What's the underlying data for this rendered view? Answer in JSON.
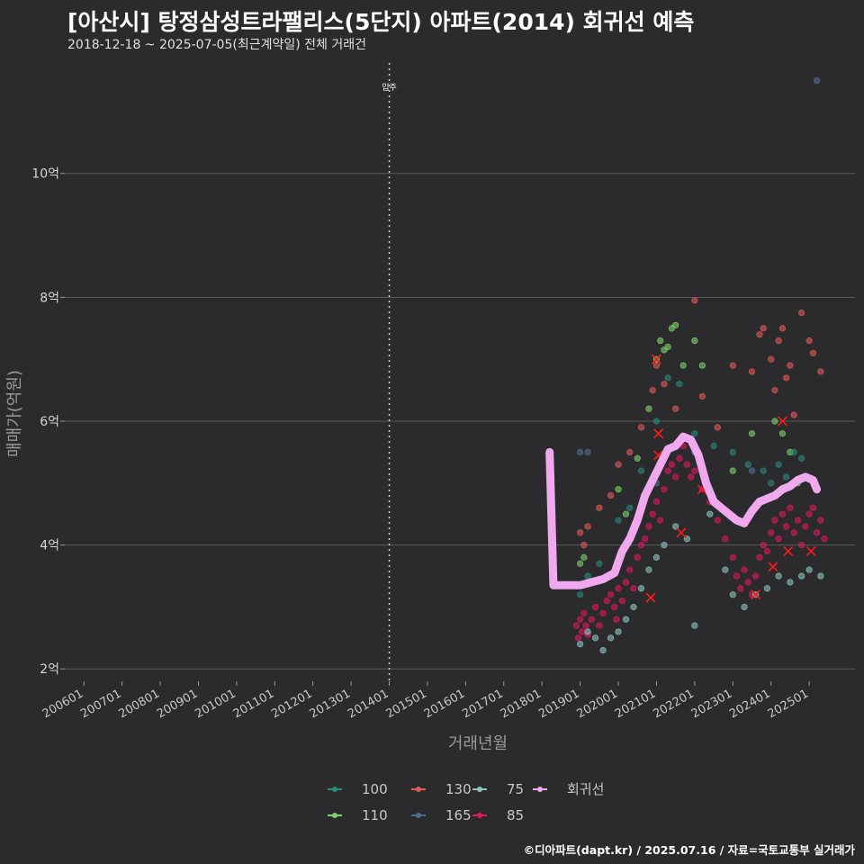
{
  "title": "[아산시] 탕정삼성트라팰리스(5단지) 아파트(2014) 회귀선 예측",
  "subtitle": "2018-12-18 ~ 2025-07-05(최근계약일) 전체 거래건",
  "footer": "©디아파트(dapt.kr) / 2025.07.16 / 자료=국토교통부 실거래가",
  "colors": {
    "background": "#2b2a2c",
    "grid": "#5a5a5a",
    "regression": "#f0a8ee",
    "marker_red": "#ff1a1a",
    "s100": "#2a8a7a",
    "s110": "#7fd36b",
    "s130": "#e35a5a",
    "s165": "#4f6e96",
    "s75": "#8ec7c0",
    "s85": "#e0185f"
  },
  "chart_data": {
    "type": "scatter",
    "xlabel": "거래년월",
    "ylabel": "매매가(억원)",
    "x_ticks": [
      "200601",
      "200701",
      "200801",
      "200901",
      "201001",
      "201101",
      "201201",
      "201301",
      "201401",
      "201501",
      "201601",
      "201701",
      "201801",
      "201901",
      "202001",
      "202101",
      "202201",
      "202301",
      "202401",
      "202501"
    ],
    "x_range": [
      2005.5,
      2026.2
    ],
    "y_ticks": [
      {
        "value": 2,
        "label": "2억"
      },
      {
        "value": 4,
        "label": "4억"
      },
      {
        "value": 6,
        "label": "6억"
      },
      {
        "value": 8,
        "label": "8억"
      },
      {
        "value": 10,
        "label": "10억"
      }
    ],
    "y_range": [
      1.8,
      11.9
    ],
    "vline": {
      "x": 2014.0,
      "label": "입주"
    },
    "legend": [
      {
        "name": "100",
        "color": "#2a8a7a"
      },
      {
        "name": "110",
        "color": "#7fd36b"
      },
      {
        "name": "130",
        "color": "#e35a5a"
      },
      {
        "name": "165",
        "color": "#4f6e96"
      },
      {
        "name": "75",
        "color": "#8ec7c0"
      },
      {
        "name": "85",
        "color": "#e0185f"
      },
      {
        "name": "회귀선",
        "color": "#f0a8ee"
      }
    ],
    "series": [
      {
        "name": "85",
        "color": "#e0185f",
        "points": [
          [
            2018.9,
            2.7
          ],
          [
            2018.95,
            2.5
          ],
          [
            2019.0,
            2.8
          ],
          [
            2019.05,
            2.6
          ],
          [
            2019.1,
            2.9
          ],
          [
            2019.15,
            2.7
          ],
          [
            2019.2,
            2.55
          ],
          [
            2019.3,
            2.8
          ],
          [
            2019.4,
            3.0
          ],
          [
            2019.5,
            2.7
          ],
          [
            2019.6,
            2.9
          ],
          [
            2019.7,
            3.1
          ],
          [
            2019.8,
            3.2
          ],
          [
            2019.9,
            3.0
          ],
          [
            2019.95,
            2.8
          ],
          [
            2020.0,
            3.3
          ],
          [
            2020.1,
            3.1
          ],
          [
            2020.2,
            3.4
          ],
          [
            2020.3,
            3.6
          ],
          [
            2020.4,
            3.3
          ],
          [
            2020.5,
            3.8
          ],
          [
            2020.6,
            4.0
          ],
          [
            2020.7,
            4.1
          ],
          [
            2020.8,
            4.3
          ],
          [
            2020.9,
            4.5
          ],
          [
            2021.0,
            4.7
          ],
          [
            2021.1,
            4.4
          ],
          [
            2021.2,
            4.9
          ],
          [
            2021.3,
            5.2
          ],
          [
            2021.4,
            5.3
          ],
          [
            2021.5,
            5.1
          ],
          [
            2021.6,
            5.4
          ],
          [
            2021.7,
            5.6
          ],
          [
            2021.8,
            5.3
          ],
          [
            2021.9,
            5.1
          ],
          [
            2022.0,
            5.2
          ],
          [
            2022.2,
            4.9
          ],
          [
            2022.4,
            4.7
          ],
          [
            2022.6,
            4.4
          ],
          [
            2022.8,
            4.1
          ],
          [
            2023.0,
            3.8
          ],
          [
            2023.1,
            3.5
          ],
          [
            2023.2,
            3.3
          ],
          [
            2023.3,
            3.6
          ],
          [
            2023.4,
            3.4
          ],
          [
            2023.5,
            3.2
          ],
          [
            2023.6,
            3.5
          ],
          [
            2023.7,
            3.8
          ],
          [
            2023.8,
            4.0
          ],
          [
            2023.9,
            3.9
          ],
          [
            2024.0,
            4.2
          ],
          [
            2024.1,
            4.4
          ],
          [
            2024.2,
            4.1
          ],
          [
            2024.3,
            4.5
          ],
          [
            2024.4,
            4.3
          ],
          [
            2024.5,
            4.6
          ],
          [
            2024.6,
            4.2
          ],
          [
            2024.7,
            4.4
          ],
          [
            2024.8,
            4.0
          ],
          [
            2024.9,
            4.3
          ],
          [
            2025.0,
            4.5
          ],
          [
            2025.1,
            4.6
          ],
          [
            2025.2,
            4.2
          ],
          [
            2025.3,
            4.4
          ],
          [
            2025.4,
            4.1
          ]
        ]
      },
      {
        "name": "130",
        "color": "#e35a5a",
        "points": [
          [
            2019.0,
            4.2
          ],
          [
            2019.1,
            4.0
          ],
          [
            2019.2,
            4.3
          ],
          [
            2019.5,
            4.6
          ],
          [
            2019.8,
            4.8
          ],
          [
            2020.0,
            5.3
          ],
          [
            2020.3,
            5.5
          ],
          [
            2020.6,
            5.9
          ],
          [
            2020.9,
            6.5
          ],
          [
            2021.0,
            6.9
          ],
          [
            2021.2,
            6.6
          ],
          [
            2021.5,
            6.2
          ],
          [
            2022.0,
            7.95
          ],
          [
            2022.2,
            6.4
          ],
          [
            2022.6,
            5.9
          ],
          [
            2023.0,
            6.9
          ],
          [
            2023.5,
            6.8
          ],
          [
            2023.7,
            7.4
          ],
          [
            2024.0,
            7.0
          ],
          [
            2024.2,
            7.3
          ],
          [
            2024.3,
            7.5
          ],
          [
            2024.4,
            6.7
          ],
          [
            2024.6,
            6.1
          ],
          [
            2024.8,
            7.75
          ],
          [
            2025.0,
            7.3
          ],
          [
            2025.1,
            7.1
          ],
          [
            2025.3,
            6.8
          ],
          [
            2024.1,
            6.5
          ],
          [
            2023.8,
            7.5
          ],
          [
            2024.5,
            6.9
          ]
        ]
      },
      {
        "name": "110",
        "color": "#7fd36b",
        "points": [
          [
            2019.0,
            3.7
          ],
          [
            2019.1,
            3.8
          ],
          [
            2020.0,
            4.9
          ],
          [
            2020.2,
            4.5
          ],
          [
            2020.5,
            5.4
          ],
          [
            2020.8,
            6.2
          ],
          [
            2021.0,
            7.0
          ],
          [
            2021.1,
            7.3
          ],
          [
            2021.2,
            7.15
          ],
          [
            2021.3,
            7.2
          ],
          [
            2021.4,
            7.5
          ],
          [
            2021.5,
            7.55
          ],
          [
            2021.7,
            6.9
          ],
          [
            2022.0,
            7.3
          ],
          [
            2022.2,
            6.9
          ],
          [
            2023.0,
            5.2
          ],
          [
            2023.5,
            5.8
          ],
          [
            2024.1,
            6.0
          ],
          [
            2024.3,
            5.8
          ],
          [
            2024.5,
            5.5
          ],
          [
            2024.7,
            5.0
          ]
        ]
      },
      {
        "name": "100",
        "color": "#2a8a7a",
        "points": [
          [
            2019.0,
            3.2
          ],
          [
            2019.2,
            3.5
          ],
          [
            2019.5,
            3.7
          ],
          [
            2020.0,
            4.4
          ],
          [
            2020.3,
            4.6
          ],
          [
            2020.6,
            5.2
          ],
          [
            2021.0,
            6.0
          ],
          [
            2021.3,
            6.7
          ],
          [
            2021.6,
            6.6
          ],
          [
            2022.0,
            5.8
          ],
          [
            2022.5,
            5.6
          ],
          [
            2023.0,
            5.5
          ],
          [
            2023.4,
            5.3
          ],
          [
            2023.8,
            5.2
          ],
          [
            2024.0,
            5.0
          ],
          [
            2024.2,
            5.3
          ],
          [
            2024.4,
            5.1
          ],
          [
            2024.6,
            5.5
          ],
          [
            2024.8,
            5.4
          ]
        ]
      },
      {
        "name": "165",
        "color": "#4f6e96",
        "points": [
          [
            2019.0,
            5.5
          ],
          [
            2019.2,
            5.5
          ],
          [
            2021.0,
            5.0
          ],
          [
            2022.0,
            5.5
          ],
          [
            2023.5,
            5.2
          ],
          [
            2025.2,
            11.5
          ]
        ]
      },
      {
        "name": "75",
        "color": "#8ec7c0",
        "points": [
          [
            2019.0,
            2.4
          ],
          [
            2019.2,
            2.6
          ],
          [
            2019.4,
            2.5
          ],
          [
            2019.6,
            2.3
          ],
          [
            2019.8,
            2.5
          ],
          [
            2020.0,
            2.6
          ],
          [
            2020.2,
            2.8
          ],
          [
            2020.4,
            3.0
          ],
          [
            2020.6,
            3.3
          ],
          [
            2020.8,
            3.6
          ],
          [
            2021.0,
            3.8
          ],
          [
            2021.2,
            4.0
          ],
          [
            2021.5,
            4.3
          ],
          [
            2021.8,
            4.1
          ],
          [
            2022.0,
            2.7
          ],
          [
            2022.4,
            4.5
          ],
          [
            2022.8,
            3.6
          ],
          [
            2023.0,
            3.2
          ],
          [
            2023.3,
            3.0
          ],
          [
            2023.6,
            3.2
          ],
          [
            2023.9,
            3.3
          ],
          [
            2024.2,
            3.5
          ],
          [
            2024.5,
            3.4
          ],
          [
            2024.8,
            3.5
          ],
          [
            2025.0,
            3.6
          ],
          [
            2025.3,
            3.5
          ]
        ]
      }
    ],
    "red_markers": [
      [
        2021.05,
        5.8
      ],
      [
        2021.05,
        5.45
      ],
      [
        2021.0,
        7.0
      ],
      [
        2021.65,
        4.2
      ],
      [
        2022.2,
        4.9
      ],
      [
        2020.85,
        3.15
      ],
      [
        2023.6,
        3.2
      ],
      [
        2024.05,
        3.65
      ],
      [
        2024.45,
        3.9
      ],
      [
        2024.3,
        6.0
      ],
      [
        2025.05,
        3.9
      ]
    ],
    "regression": [
      [
        2018.2,
        5.5
      ],
      [
        2018.3,
        3.35
      ],
      [
        2018.5,
        3.35
      ],
      [
        2018.7,
        3.35
      ],
      [
        2019.0,
        3.35
      ],
      [
        2019.3,
        3.4
      ],
      [
        2019.6,
        3.45
      ],
      [
        2019.9,
        3.55
      ],
      [
        2020.1,
        3.9
      ],
      [
        2020.3,
        4.1
      ],
      [
        2020.5,
        4.4
      ],
      [
        2020.7,
        4.8
      ],
      [
        2020.9,
        5.05
      ],
      [
        2021.1,
        5.3
      ],
      [
        2021.3,
        5.55
      ],
      [
        2021.5,
        5.6
      ],
      [
        2021.7,
        5.75
      ],
      [
        2021.9,
        5.7
      ],
      [
        2022.1,
        5.45
      ],
      [
        2022.3,
        5.0
      ],
      [
        2022.5,
        4.7
      ],
      [
        2022.7,
        4.6
      ],
      [
        2022.9,
        4.5
      ],
      [
        2023.1,
        4.4
      ],
      [
        2023.3,
        4.35
      ],
      [
        2023.5,
        4.55
      ],
      [
        2023.7,
        4.7
      ],
      [
        2023.9,
        4.75
      ],
      [
        2024.1,
        4.8
      ],
      [
        2024.3,
        4.9
      ],
      [
        2024.5,
        4.95
      ],
      [
        2024.7,
        5.05
      ],
      [
        2024.9,
        5.1
      ],
      [
        2025.1,
        5.05
      ],
      [
        2025.2,
        4.9
      ]
    ]
  }
}
